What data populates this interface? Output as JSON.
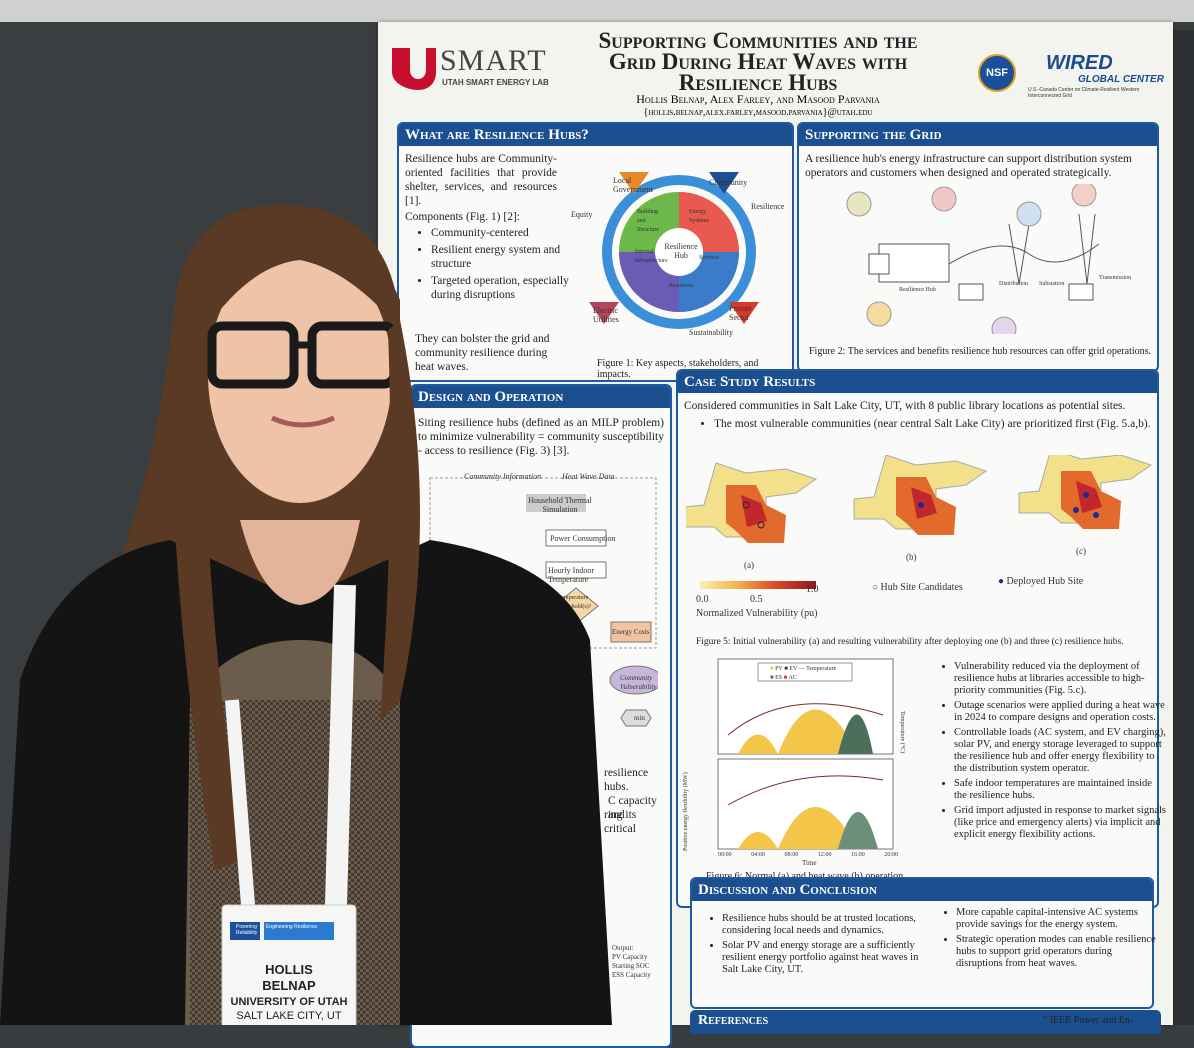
{
  "poster": {
    "logo_left": "SMART",
    "logo_left_sub": "UTAH SMART ENERGY LAB",
    "title": [
      "Supporting Communities and the",
      "Grid During Heat Waves with",
      "Resilience Hubs"
    ],
    "authors": "Hollis Belnap, Alex Farley, and Masood Parvania",
    "email": "{hollis.belnap,alex.farley,masood.parvania}@utah.edu",
    "logo_nsf": "NSF",
    "logo_right": "WIRED",
    "logo_right_sub": "GLOBAL CENTER",
    "logo_right_note": "U.S.-Canada Center on Climate-Resilient Western Interconnected Grid",
    "hubs": {
      "heading": "What are Resilience Hubs?",
      "intro": "Resilience hubs are Community-oriented facilities that provide shelter, services, and resources [1].",
      "components_label": "Components (Fig. 1) [2]:",
      "components": [
        "Community-centered",
        "Resilient energy system and structure",
        "Targeted operation, especially during disruptions"
      ],
      "closing": "They can bolster the grid and community resilience during heat waves.",
      "figure_labels": [
        "Resilience Hub",
        "Community",
        "Local Government",
        "Equity",
        "Resilience",
        "Electric Utilities",
        "Private Sector",
        "Sustainability",
        "Building and Structure",
        "Energy Systems",
        "Internal Infrastructure",
        "Services",
        "Resources"
      ],
      "caption": "Figure 1: Key aspects, stakeholders, and impacts."
    },
    "grid": {
      "heading": "Supporting the Grid",
      "text": "A resilience hub's energy infrastructure can support distribution system operators and customers when designed and operated strategically.",
      "figure_labels": [
        "Resilience Hub",
        "Distribution",
        "Substation",
        "Transmission"
      ],
      "caption": "Figure 2: The services and benefits resilience hub resources can offer grid operations."
    },
    "design": {
      "heading": "Design and Operation",
      "text": "Siting resilience hubs (defined as an MILP problem) to minimize vulnerability = community susceptibility - access to resilience (Fig. 3) [3].",
      "flow": [
        "Community Information",
        "Heat Wave Data",
        "Household Thermal Simulation",
        "Power Consumption",
        "Hourly Indoor Temperature",
        "Temperature Threshold(s)?",
        "Energy Costs",
        "Community Vulnerability",
        "min"
      ],
      "fragments": [
        "resilience hubs.",
        "C capacity and",
        "ring its critical"
      ],
      "outputs": [
        "Output:",
        "PV Capacity",
        "Starting SOC",
        "ESS Capacity"
      ]
    },
    "case": {
      "heading": "Case Study Results",
      "intro": "Considered communities in Salt Lake City, UT, with 8 public library locations as potential sites.",
      "bullet": "The most vulnerable communities (near central Salt Lake City) are prioritized first (Fig. 5.a,b).",
      "map_labels": [
        "(a)",
        "(b)",
        "(c)"
      ],
      "colorbar_ticks": [
        "0.0",
        "0.5",
        "1.0"
      ],
      "colorbar_label": "Normalized Vulnerability (pu)",
      "legend": [
        "Hub Site Candidates",
        "Deployed Hub Site"
      ],
      "fig5_caption": "Figure 5: Initial vulnerability (a) and resulting vulnerability after deploying one (b) and three (c) resilience hubs.",
      "chart_legend": [
        "PV",
        "EV",
        "ES",
        "AC",
        "Temperature"
      ],
      "chart_y_label": "Positive energy flexibility (MW)",
      "chart_y2_label": "Temperature (°C)",
      "chart_x_label": "Time",
      "chart_x_ticks": [
        "00:00",
        "04:00",
        "08:00",
        "12:00",
        "16:00",
        "20:00"
      ],
      "bullets": [
        "Vulnerability reduced via the deployment of resilience hubs at libraries accessible to high-priority communities (Fig. 5.c).",
        "Outage scenarios were applied during a heat wave in 2024 to compare designs and operation costs.",
        "Controllable loads (AC system, and EV charging), solar PV, and energy storage leveraged to support the resilience hub and offer energy flexibility to the distribution system operator.",
        "Safe indoor temperatures are maintained inside the resilience hubs.",
        "Grid import adjusted in response to market signals (like price and emergency alerts) via implicit and explicit energy flexibility actions."
      ],
      "fig6_caption": "Figure 6: Normal (a) and heat wave (b) operation."
    },
    "discussion": {
      "heading": "Discussion and Conclusion",
      "left": [
        "Resilience hubs should be at trusted locations, considering local needs and dynamics.",
        "Solar PV and energy storage are a sufficiently resilient energy portfolio against heat waves in Salt Lake City, UT."
      ],
      "right": [
        "More capable capital-intensive AC systems provide savings for the energy system.",
        "Strategic operation modes can enable resilience hubs to support grid operators during disruptions from heat waves."
      ]
    },
    "references_heading": "References",
    "references_fragment": "\" IEEE Power and En-"
  },
  "badge": {
    "header": "Powering Reliability",
    "tags": [
      "Engineering",
      "Resilience"
    ],
    "first_name": "HOLLIS",
    "last_name": "BELNAP",
    "organization": "UNIVERSITY OF UTAH",
    "location": "SALT LAKE CITY, UT"
  }
}
